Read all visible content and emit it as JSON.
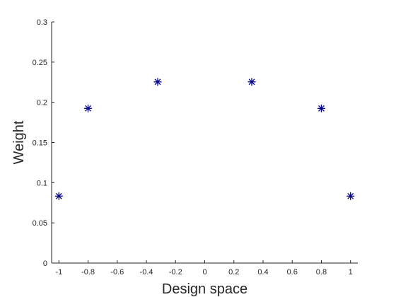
{
  "chart_data": {
    "type": "scatter",
    "title": "",
    "xlabel": "Design space",
    "ylabel": "Weight",
    "xlim": [
      -1.05,
      1.05
    ],
    "ylim": [
      0,
      0.3
    ],
    "x_ticks": [
      -1,
      -0.8,
      -0.6,
      -0.4,
      -0.2,
      0,
      0.2,
      0.4,
      0.6,
      0.8,
      1
    ],
    "x_tick_labels": [
      "-1",
      "-0.8",
      "-0.6",
      "-0.4",
      "-0.2",
      "0",
      "0.2",
      "0.4",
      "0.6",
      "0.8",
      "1"
    ],
    "y_ticks": [
      0,
      0.05,
      0.1,
      0.15,
      0.2,
      0.25,
      0.3
    ],
    "y_tick_labels": [
      "0",
      "0.05",
      "0.1",
      "0.15",
      "0.2",
      "0.25",
      "0.3"
    ],
    "grid": false,
    "marker": "asterisk",
    "marker_color": "#00008b",
    "series": [
      {
        "x": [
          -1,
          -0.8,
          -0.3227,
          0.3227,
          0.8,
          1
        ],
        "y": [
          0.0833,
          0.1924,
          0.2254,
          0.2254,
          0.1924,
          0.0833
        ]
      }
    ]
  }
}
